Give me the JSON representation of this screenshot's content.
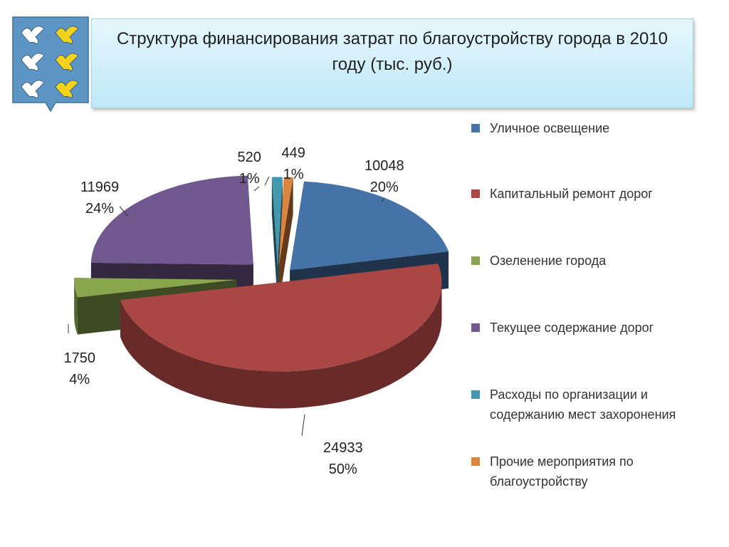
{
  "title": "Структура финансирования затрат по благоустройству города в 2010 году (тыс. руб.)",
  "emblem": {
    "icon": "city-coat-of-arms-icon",
    "background": "#5d96c4",
    "bird_colors": [
      "#ffffff",
      "#f2d21b"
    ]
  },
  "chart_data": {
    "type": "pie",
    "title": "Структура финансирования затрат по благоустройству города в 2010 году (тыс. руб.)",
    "three_d": true,
    "exploded": true,
    "legend_position": "right",
    "slices": [
      {
        "label": "Уличное освещение",
        "value": 10048,
        "percent_label": "20%",
        "color": "#4572a7"
      },
      {
        "label": "Капитальный ремонт дорог",
        "value": 24933,
        "percent_label": "50%",
        "color": "#aa4643"
      },
      {
        "label": "Озеленение города",
        "value": 1750,
        "percent_label": "4%",
        "color": "#89a54e"
      },
      {
        "label": "Текущее содержание дорог",
        "value": 11969,
        "percent_label": "24%",
        "color": "#71588f"
      },
      {
        "label": "Расходы по организации и содержанию мест захоронения",
        "value": 520,
        "percent_label": "1%",
        "color": "#4198af"
      },
      {
        "label": "Прочие мероприятия по благоустройству",
        "value": 449,
        "percent_label": "1%",
        "color": "#db843d"
      }
    ]
  }
}
